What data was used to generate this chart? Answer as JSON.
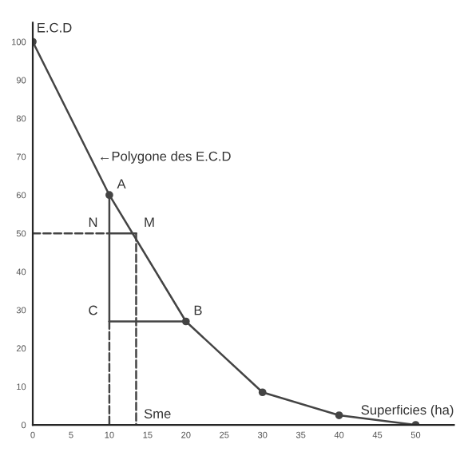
{
  "chart_data": {
    "type": "line",
    "ylabel": "E.C.D",
    "xlabel": "Superficies (ha)",
    "x": [
      0,
      10,
      20,
      30,
      40,
      50
    ],
    "series": [
      {
        "color": "#444444",
        "values": [
          100,
          60,
          27,
          8.5,
          2.5,
          0
        ],
        "marker": "circle",
        "line_style": "solid"
      },
      {
        "color": "#444444",
        "x": [
          10,
          10
        ],
        "values": [
          60,
          27
        ],
        "marker": "none",
        "line_style": "solid"
      },
      {
        "color": "#444444",
        "x": [
          10,
          13.5
        ],
        "values": [
          50,
          50
        ],
        "marker": "none",
        "line_style": "solid"
      },
      {
        "color": "#444444",
        "x": [
          10,
          20
        ],
        "values": [
          27,
          27
        ],
        "marker": "none",
        "line_style": "solid"
      },
      {
        "color": "#444444",
        "x": [
          0,
          10
        ],
        "values": [
          50,
          50
        ],
        "marker": "none",
        "line_style": "dashed"
      },
      {
        "color": "#444444",
        "x": [
          10,
          10
        ],
        "values": [
          27,
          0
        ],
        "marker": "none",
        "line_style": "dashed"
      },
      {
        "color": "#444444",
        "x": [
          13.5,
          13.5
        ],
        "values": [
          50,
          0
        ],
        "marker": "none",
        "line_style": "dashed"
      }
    ],
    "annotations": [
      "←Polygone des E.C.D",
      {
        "text": "A",
        "x": 10,
        "y": 60
      },
      {
        "text": "N",
        "x": 10,
        "y": 50
      },
      {
        "text": "M",
        "x": 13.5,
        "y": 50
      },
      {
        "text": "C",
        "x": 10,
        "y": 27
      },
      {
        "text": "B",
        "x": 20,
        "y": 27
      },
      {
        "text": "Sme",
        "x": 13.5,
        "y": 0
      }
    ],
    "xlim": [
      0,
      55
    ],
    "ylim": [
      0,
      105
    ],
    "xticks": [
      0,
      5,
      10,
      15,
      20,
      25,
      30,
      35,
      40,
      45,
      50
    ],
    "yticks": [
      0,
      10,
      20,
      30,
      40,
      50,
      60,
      70,
      80,
      90,
      100
    ],
    "grid": false,
    "legend": false
  }
}
